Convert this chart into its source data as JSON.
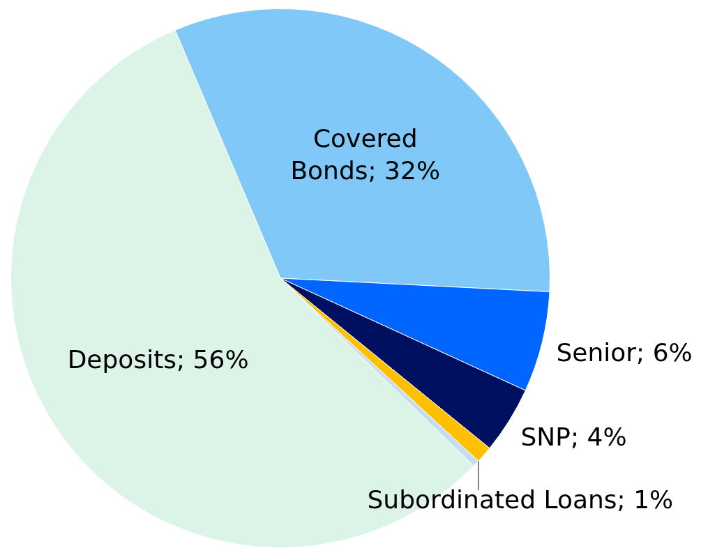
{
  "chart_data": {
    "type": "pie",
    "categories": [
      "Covered Bonds",
      "Senior",
      "SNP",
      "Subordinated Loans",
      null,
      "Deposits"
    ],
    "values": [
      32,
      6,
      4,
      1,
      0.4,
      56
    ],
    "value_labels": [
      "32%",
      "6%",
      "4%",
      "1%",
      null,
      "56%"
    ],
    "colors": [
      "#80c8f8",
      "#0066ff",
      "#001060",
      "#ffc000",
      "#c8dcf0",
      "#dcf3e8"
    ]
  }
}
